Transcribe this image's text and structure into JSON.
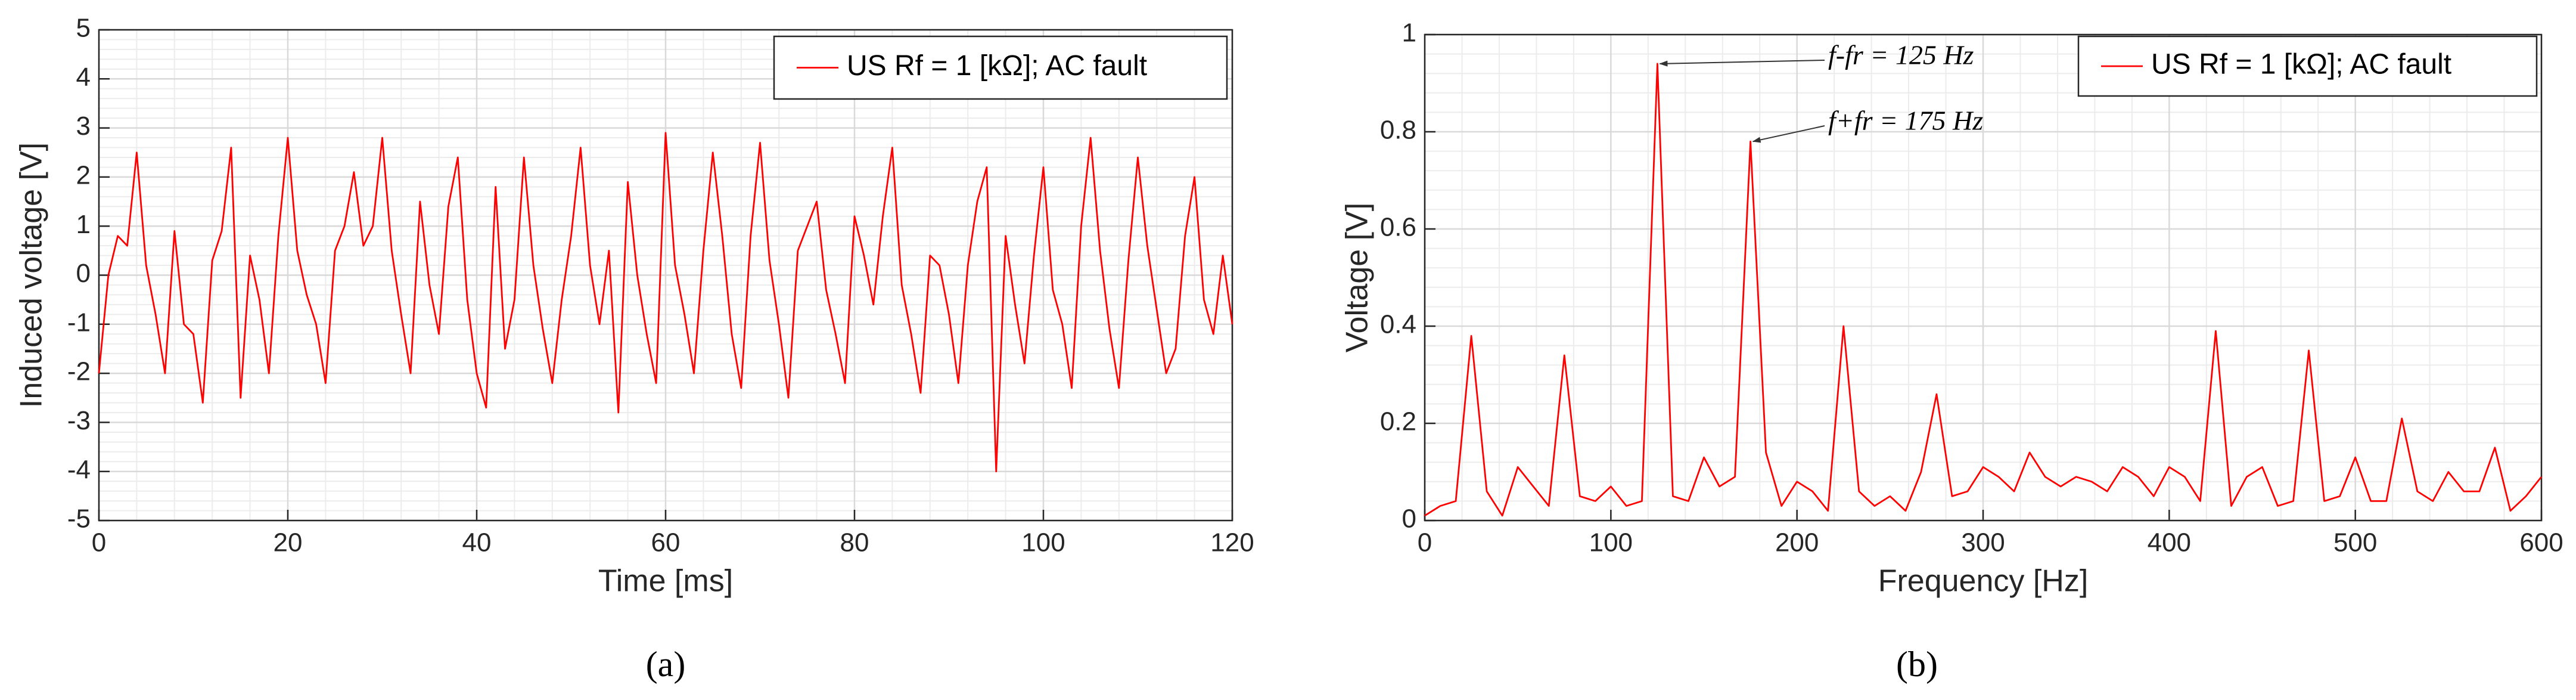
{
  "chart_data": [
    {
      "type": "line",
      "caption": "(a)",
      "xlabel": "Time [ms]",
      "ylabel": "Induced voltage [V]",
      "xlim": [
        0,
        120
      ],
      "xticks": [
        0,
        20,
        40,
        60,
        80,
        100,
        120
      ],
      "ylim": [
        -5,
        5
      ],
      "yticks": [
        -5,
        -4,
        -3,
        -2,
        -1,
        0,
        1,
        2,
        3,
        4,
        5
      ],
      "grid": true,
      "minor_grid": true,
      "legend": "upper right",
      "x": [
        0,
        1,
        2,
        3,
        4,
        5,
        6,
        7,
        8,
        9,
        10,
        11,
        12,
        13,
        14,
        15,
        16,
        17,
        18,
        19,
        20,
        21,
        22,
        23,
        24,
        25,
        26,
        27,
        28,
        29,
        30,
        31,
        32,
        33,
        34,
        35,
        36,
        37,
        38,
        39,
        40,
        41,
        42,
        43,
        44,
        45,
        46,
        47,
        48,
        49,
        50,
        51,
        52,
        53,
        54,
        55,
        56,
        57,
        58,
        59,
        60,
        61,
        62,
        63,
        64,
        65,
        66,
        67,
        68,
        69,
        70,
        71,
        72,
        73,
        74,
        75,
        76,
        77,
        78,
        79,
        80,
        81,
        82,
        83,
        84,
        85,
        86,
        87,
        88,
        89,
        90,
        91,
        92,
        93,
        94,
        95,
        96,
        97,
        98,
        99,
        100,
        101,
        102,
        103,
        104,
        105,
        106,
        107,
        108,
        109,
        110,
        111,
        112,
        113,
        114,
        115,
        116,
        117,
        118,
        119,
        120
      ],
      "series": [
        {
          "name": "US Rf = 1 [kΩ]; AC fault",
          "color": "#ff0000",
          "values": [
            -2.0,
            0.0,
            0.8,
            0.6,
            2.5,
            0.2,
            -0.8,
            -2.0,
            0.9,
            -1.0,
            -1.2,
            -2.6,
            0.3,
            0.9,
            2.6,
            -2.5,
            0.4,
            -0.5,
            -2.0,
            0.8,
            2.8,
            0.5,
            -0.4,
            -1.0,
            -2.2,
            0.5,
            1.0,
            2.1,
            0.6,
            1.0,
            2.8,
            0.5,
            -0.8,
            -2.0,
            1.5,
            -0.2,
            -1.2,
            1.4,
            2.4,
            -0.5,
            -2.0,
            -2.7,
            1.8,
            -1.5,
            -0.5,
            2.4,
            0.2,
            -1.1,
            -2.2,
            -0.5,
            0.8,
            2.6,
            0.2,
            -1.0,
            0.5,
            -2.8,
            1.9,
            0.0,
            -1.2,
            -2.2,
            2.9,
            0.2,
            -0.8,
            -2.0,
            0.5,
            2.5,
            0.8,
            -1.2,
            -2.3,
            0.8,
            2.7,
            0.3,
            -1.0,
            -2.5,
            0.5,
            1.0,
            1.5,
            -0.3,
            -1.2,
            -2.2,
            1.2,
            0.4,
            -0.6,
            1.2,
            2.6,
            -0.2,
            -1.2,
            -2.4,
            0.4,
            0.2,
            -0.8,
            -2.2,
            0.2,
            1.5,
            2.2,
            -4.0,
            0.8,
            -0.6,
            -1.8,
            0.4,
            2.2,
            -0.3,
            -1.0,
            -2.3,
            1.0,
            2.8,
            0.5,
            -1.1,
            -2.3,
            0.3,
            2.4,
            0.6,
            -0.7,
            -2.0,
            -1.5,
            0.8,
            2.0,
            -0.5,
            -1.2,
            0.4,
            -1.0
          ]
        }
      ]
    },
    {
      "type": "line",
      "caption": "(b)",
      "xlabel": "Frequency [Hz]",
      "ylabel": "Voltage [V]",
      "xlim": [
        0,
        600
      ],
      "xticks": [
        0,
        100,
        200,
        300,
        400,
        500,
        600
      ],
      "ylim": [
        0,
        1
      ],
      "yticks": [
        0,
        0.2,
        0.4,
        0.6,
        0.8,
        1
      ],
      "grid": true,
      "minor_grid": true,
      "legend": "upper right",
      "annotations": [
        "f-fr = 125 Hz",
        "f+fr = 175 Hz"
      ],
      "x": [
        0,
        8.33,
        16.67,
        25,
        33.33,
        41.67,
        50,
        58.33,
        66.67,
        75,
        83.33,
        91.67,
        100,
        108.33,
        116.67,
        125,
        133.33,
        141.67,
        150,
        158.33,
        166.67,
        175,
        183.33,
        191.67,
        200,
        208.33,
        216.67,
        225,
        233.33,
        241.67,
        250,
        258.33,
        266.67,
        275,
        283.33,
        291.67,
        300,
        308.33,
        316.67,
        325,
        333.33,
        341.67,
        350,
        358.33,
        366.67,
        375,
        383.33,
        391.67,
        400,
        408.33,
        416.67,
        425,
        433.33,
        441.67,
        450,
        458.33,
        466.67,
        475,
        483.33,
        491.67,
        500,
        508.33,
        516.67,
        525,
        533.33,
        541.67,
        550,
        558.33,
        566.67,
        575,
        583.33,
        591.67,
        600
      ],
      "series": [
        {
          "name": "US Rf = 1 [kΩ]; AC fault",
          "color": "#ff0000",
          "values": [
            0.01,
            0.03,
            0.04,
            0.38,
            0.06,
            0.01,
            0.11,
            0.07,
            0.03,
            0.34,
            0.05,
            0.04,
            0.07,
            0.03,
            0.04,
            0.94,
            0.05,
            0.04,
            0.13,
            0.07,
            0.09,
            0.78,
            0.14,
            0.03,
            0.08,
            0.06,
            0.02,
            0.4,
            0.06,
            0.03,
            0.05,
            0.02,
            0.1,
            0.26,
            0.05,
            0.06,
            0.11,
            0.09,
            0.06,
            0.14,
            0.09,
            0.07,
            0.09,
            0.08,
            0.06,
            0.11,
            0.09,
            0.05,
            0.11,
            0.09,
            0.04,
            0.39,
            0.03,
            0.09,
            0.11,
            0.03,
            0.04,
            0.35,
            0.04,
            0.05,
            0.13,
            0.04,
            0.04,
            0.21,
            0.06,
            0.04,
            0.1,
            0.06,
            0.06,
            0.15,
            0.02,
            0.05,
            0.09
          ]
        }
      ]
    }
  ]
}
